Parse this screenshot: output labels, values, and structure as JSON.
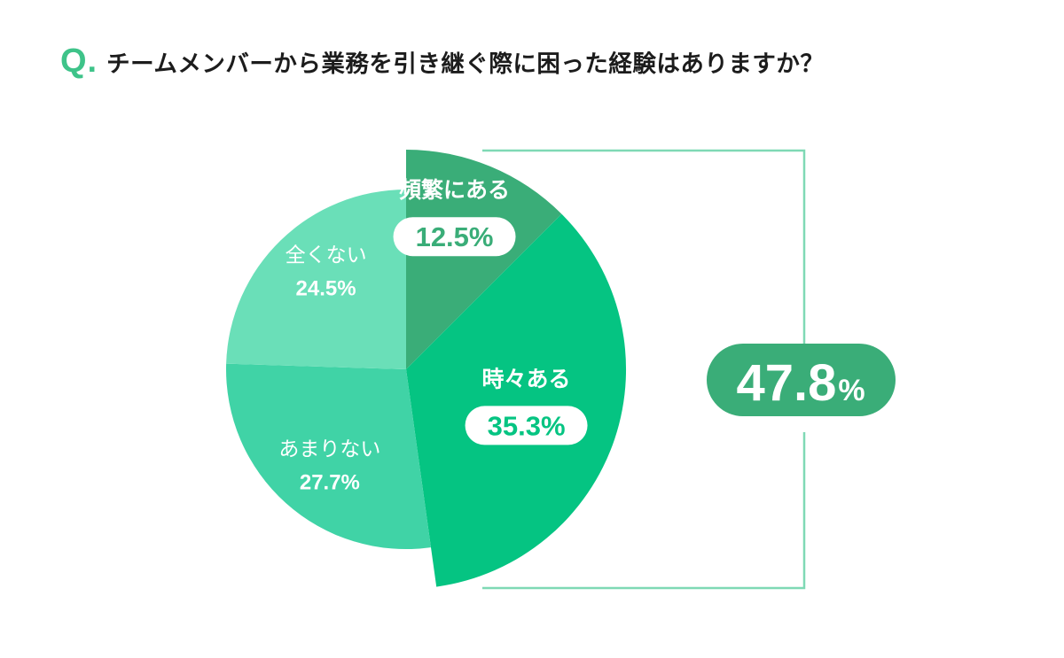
{
  "header": {
    "q_mark": "Q.",
    "question": "チームメンバーから業務を引き継ぐ際に困った経験はありますか？"
  },
  "colors": {
    "accent": "#3ec389",
    "frequent": "#3aad78",
    "sometimes": "#05c482",
    "rarely": "#40d3a6",
    "never": "#6adfb8",
    "bracket": "#7fd9b5",
    "total_pill": "#3aad78"
  },
  "chart_data": {
    "type": "pie",
    "title": "チームメンバーから業務を引き継ぐ際に困った経験はありますか？",
    "slices": [
      {
        "label": "頻繁にある",
        "value": 12.5,
        "display": "12.5%"
      },
      {
        "label": "時々ある",
        "value": 35.3,
        "display": "35.3%"
      },
      {
        "label": "あまりない",
        "value": 27.7,
        "display": "27.7%"
      },
      {
        "label": "全くない",
        "value": 24.5,
        "display": "24.5%"
      }
    ],
    "total": {
      "value": 47.8,
      "display_number": "47.8",
      "display_unit": "%",
      "covers": [
        "頻繁にある",
        "時々ある"
      ]
    }
  }
}
